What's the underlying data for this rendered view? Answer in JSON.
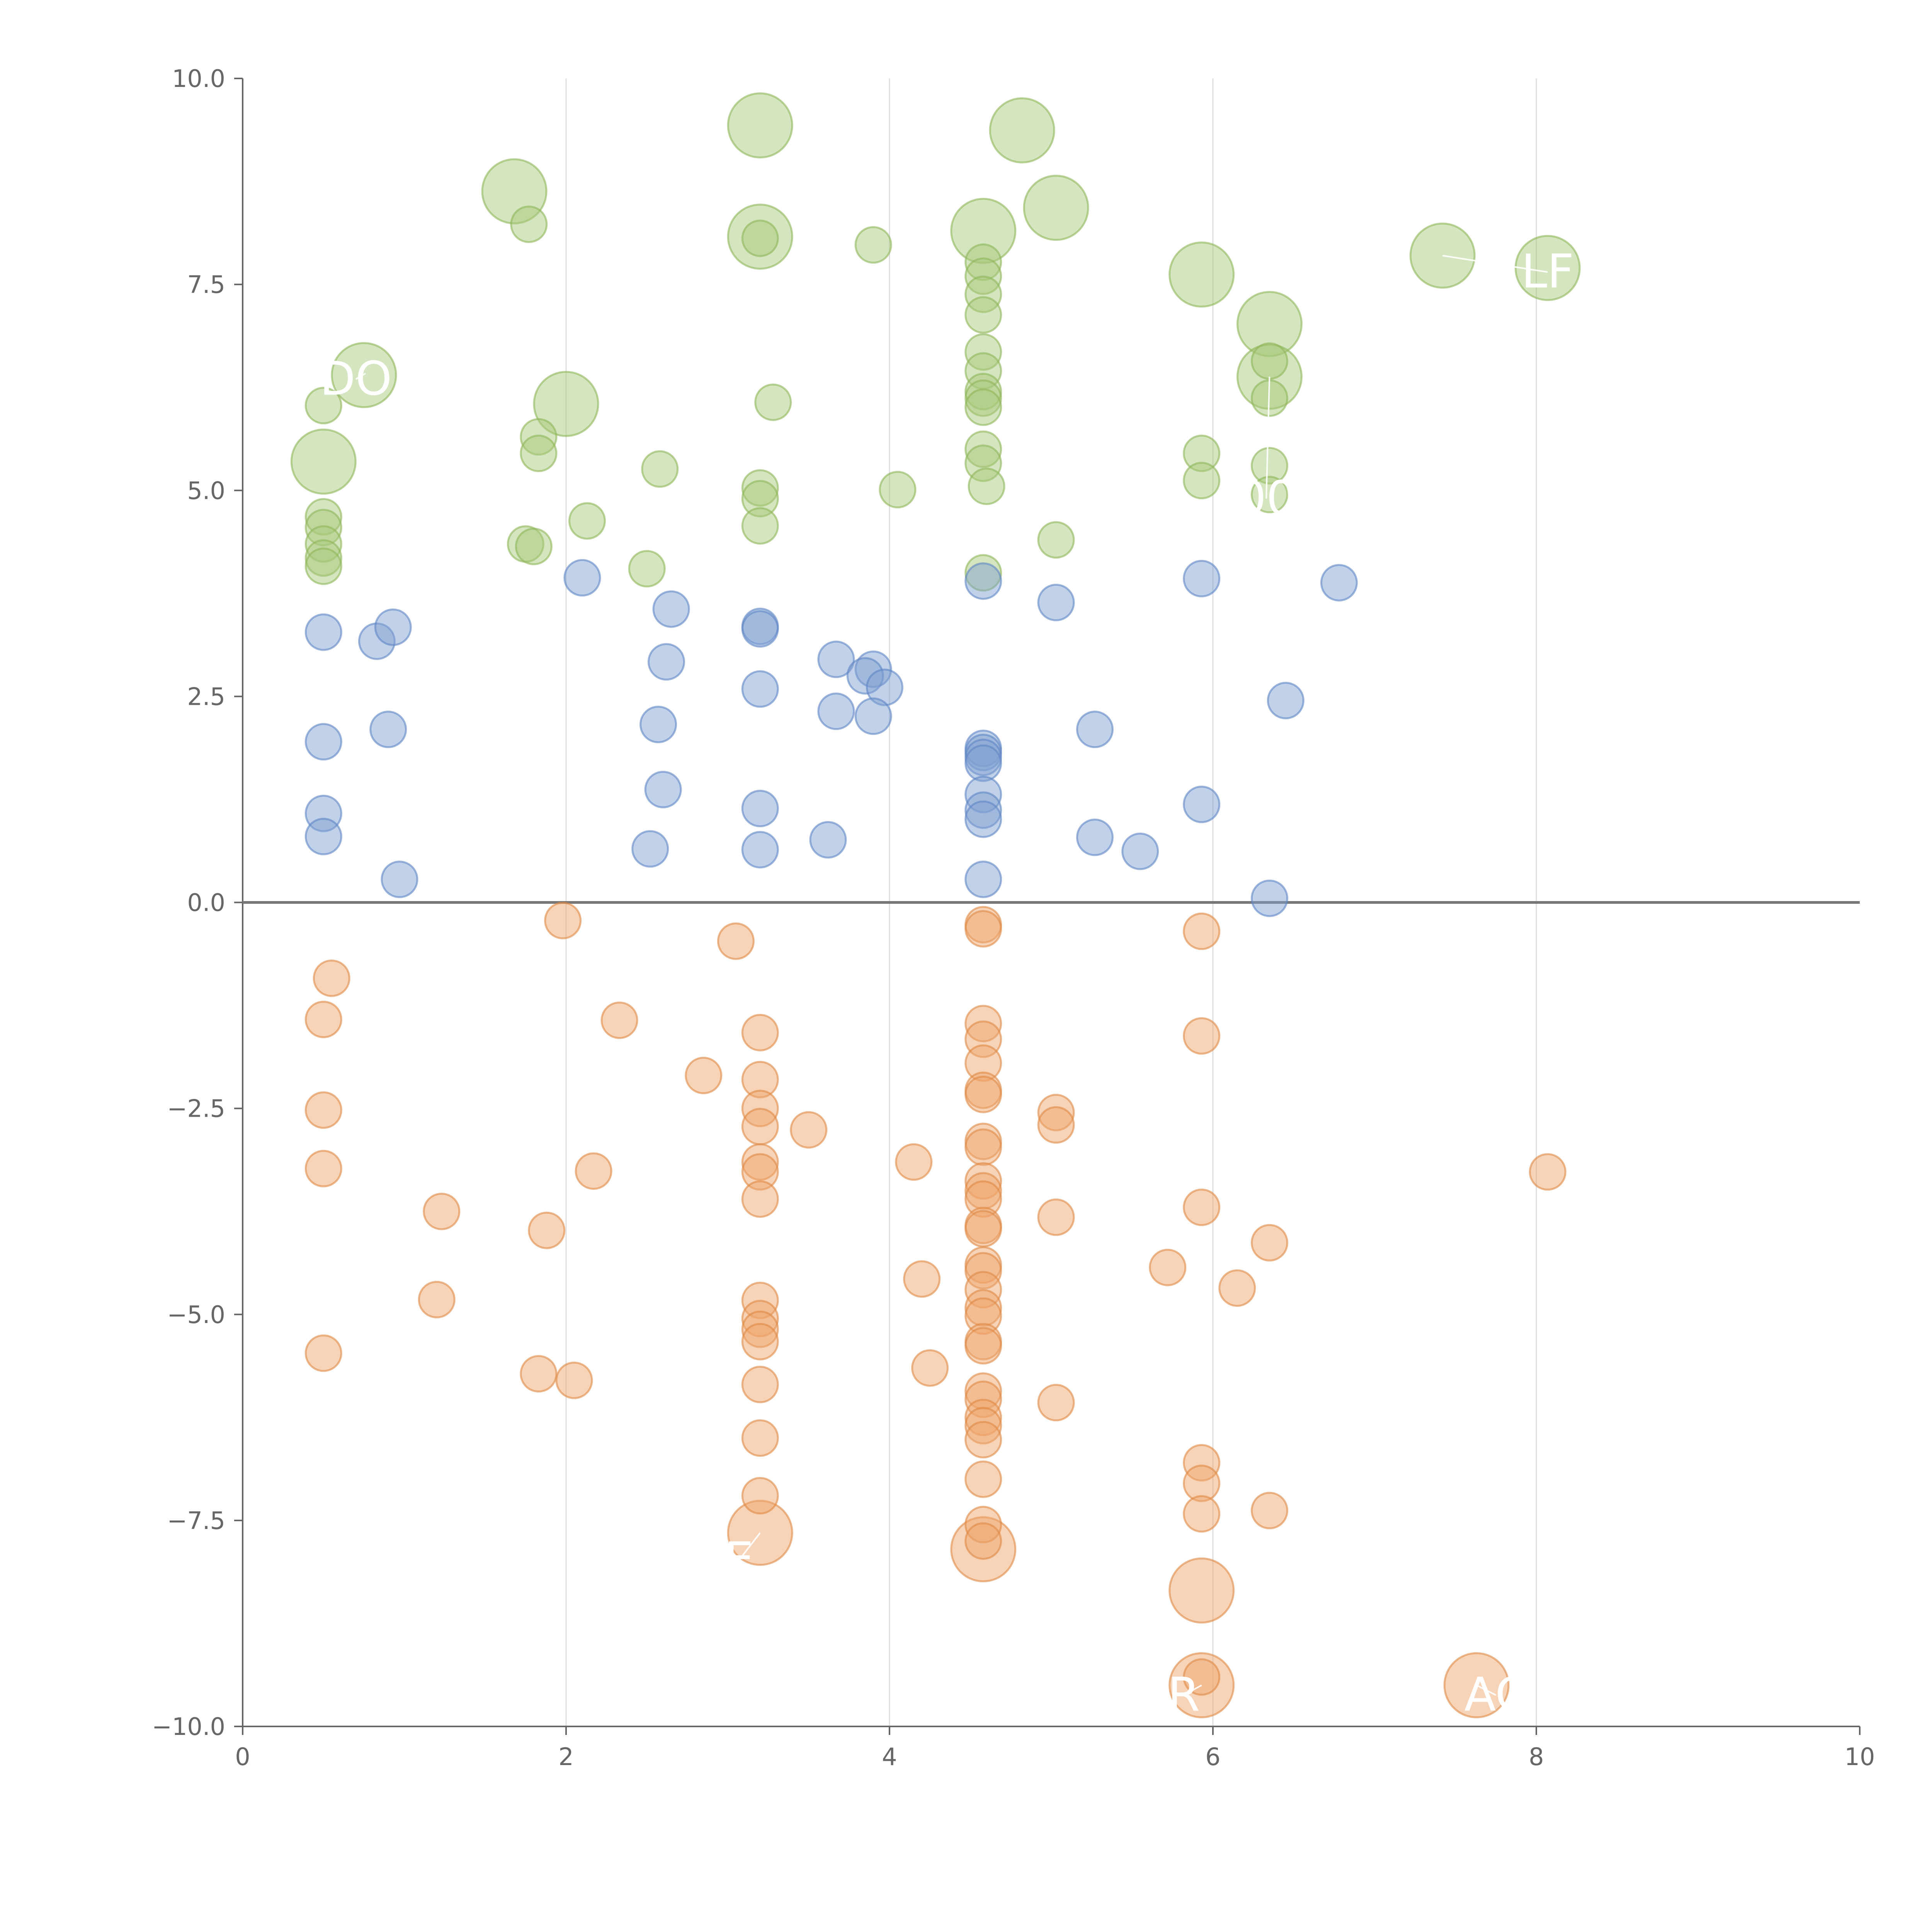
{
  "chart_data": {
    "type": "scatter",
    "title": "",
    "xlabel": "",
    "ylabel": "",
    "xlim": [
      0,
      10
    ],
    "ylim": [
      -10,
      10
    ],
    "xticks": [
      "0",
      "2",
      "4",
      "6",
      "8",
      "10"
    ],
    "yticks": [
      "−10.0",
      "−7.5",
      "−5.0",
      "−2.5",
      "0.0",
      "2.5",
      "5.0",
      "7.5",
      "10.0"
    ],
    "grid": "vertical",
    "zero_line": true,
    "colors": {
      "green": "#a8c87a",
      "green_stroke": "#8db659",
      "blue": "#7e9fd0",
      "blue_stroke": "#5f86c4",
      "orange": "#eea56a",
      "orange_stroke": "#de8844",
      "label": "#ffffff"
    },
    "series": [
      {
        "color_key": "green",
        "points": [
          {
            "x": 0.5,
            "y": 5.35,
            "size": "large"
          },
          {
            "x": 0.75,
            "y": 6.4,
            "size": "large"
          },
          {
            "x": 1.68,
            "y": 8.63,
            "size": "large"
          },
          {
            "x": 2.0,
            "y": 6.05,
            "size": "large"
          },
          {
            "x": 3.2,
            "y": 9.43,
            "size": "large"
          },
          {
            "x": 3.2,
            "y": 8.08,
            "size": "large"
          },
          {
            "x": 4.58,
            "y": 8.15,
            "size": "large"
          },
          {
            "x": 4.82,
            "y": 9.37,
            "size": "large"
          },
          {
            "x": 5.03,
            "y": 8.43,
            "size": "large"
          },
          {
            "x": 5.93,
            "y": 7.62,
            "size": "large"
          },
          {
            "x": 6.35,
            "y": 7.02,
            "size": "large"
          },
          {
            "x": 6.35,
            "y": 6.38,
            "size": "large"
          },
          {
            "x": 7.42,
            "y": 7.85,
            "size": "large"
          },
          {
            "x": 8.07,
            "y": 7.7,
            "size": "large"
          },
          {
            "x": 0.5,
            "y": 6.03
          },
          {
            "x": 0.5,
            "y": 4.68
          },
          {
            "x": 0.5,
            "y": 4.55
          },
          {
            "x": 0.5,
            "y": 4.35
          },
          {
            "x": 0.5,
            "y": 4.18
          },
          {
            "x": 0.5,
            "y": 4.08
          },
          {
            "x": 1.77,
            "y": 8.23
          },
          {
            "x": 1.83,
            "y": 5.65
          },
          {
            "x": 1.83,
            "y": 5.45
          },
          {
            "x": 1.75,
            "y": 4.35
          },
          {
            "x": 1.8,
            "y": 4.32
          },
          {
            "x": 2.13,
            "y": 4.63
          },
          {
            "x": 2.5,
            "y": 4.05
          },
          {
            "x": 2.58,
            "y": 5.26
          },
          {
            "x": 3.2,
            "y": 8.06
          },
          {
            "x": 3.2,
            "y": 5.03
          },
          {
            "x": 3.2,
            "y": 4.9
          },
          {
            "x": 3.2,
            "y": 4.57
          },
          {
            "x": 3.28,
            "y": 6.07
          },
          {
            "x": 3.9,
            "y": 7.98
          },
          {
            "x": 4.05,
            "y": 5.01
          },
          {
            "x": 4.58,
            "y": 7.77
          },
          {
            "x": 4.58,
            "y": 7.6
          },
          {
            "x": 4.58,
            "y": 7.38
          },
          {
            "x": 4.58,
            "y": 7.13
          },
          {
            "x": 4.58,
            "y": 6.68
          },
          {
            "x": 4.58,
            "y": 6.45
          },
          {
            "x": 4.58,
            "y": 6.2
          },
          {
            "x": 4.58,
            "y": 6.12
          },
          {
            "x": 4.58,
            "y": 6.01
          },
          {
            "x": 4.58,
            "y": 5.5
          },
          {
            "x": 4.58,
            "y": 5.33
          },
          {
            "x": 4.6,
            "y": 5.05
          },
          {
            "x": 4.58,
            "y": 4.0
          },
          {
            "x": 5.03,
            "y": 4.4
          },
          {
            "x": 5.93,
            "y": 5.45
          },
          {
            "x": 5.93,
            "y": 5.12
          },
          {
            "x": 6.35,
            "y": 6.57
          },
          {
            "x": 6.35,
            "y": 6.12
          },
          {
            "x": 6.35,
            "y": 5.3
          },
          {
            "x": 6.35,
            "y": 4.95
          }
        ]
      },
      {
        "color_key": "blue",
        "points": [
          {
            "x": 0.5,
            "y": 3.28
          },
          {
            "x": 0.5,
            "y": 1.95
          },
          {
            "x": 0.5,
            "y": 1.08
          },
          {
            "x": 0.5,
            "y": 0.8
          },
          {
            "x": 0.83,
            "y": 3.17
          },
          {
            "x": 0.93,
            "y": 3.34
          },
          {
            "x": 0.9,
            "y": 2.1
          },
          {
            "x": 0.97,
            "y": 0.28
          },
          {
            "x": 2.1,
            "y": 3.94
          },
          {
            "x": 2.52,
            "y": 0.65
          },
          {
            "x": 2.57,
            "y": 2.16
          },
          {
            "x": 2.6,
            "y": 1.37
          },
          {
            "x": 2.62,
            "y": 2.92
          },
          {
            "x": 2.65,
            "y": 3.56
          },
          {
            "x": 3.2,
            "y": 3.35
          },
          {
            "x": 3.2,
            "y": 3.32
          },
          {
            "x": 3.2,
            "y": 2.59
          },
          {
            "x": 3.2,
            "y": 1.14
          },
          {
            "x": 3.2,
            "y": 0.64
          },
          {
            "x": 3.62,
            "y": 0.76
          },
          {
            "x": 3.67,
            "y": 2.95
          },
          {
            "x": 3.67,
            "y": 2.32
          },
          {
            "x": 3.9,
            "y": 2.83
          },
          {
            "x": 3.85,
            "y": 2.75
          },
          {
            "x": 3.97,
            "y": 2.61
          },
          {
            "x": 3.9,
            "y": 2.26
          },
          {
            "x": 4.58,
            "y": 3.9
          },
          {
            "x": 4.58,
            "y": 1.87
          },
          {
            "x": 4.58,
            "y": 1.82
          },
          {
            "x": 4.58,
            "y": 1.76
          },
          {
            "x": 4.58,
            "y": 1.69
          },
          {
            "x": 4.58,
            "y": 1.31
          },
          {
            "x": 4.58,
            "y": 1.12
          },
          {
            "x": 4.58,
            "y": 1.01
          },
          {
            "x": 4.58,
            "y": 0.28
          },
          {
            "x": 5.03,
            "y": 3.64
          },
          {
            "x": 5.27,
            "y": 2.1
          },
          {
            "x": 5.27,
            "y": 0.79
          },
          {
            "x": 5.55,
            "y": 0.62
          },
          {
            "x": 5.93,
            "y": 3.93
          },
          {
            "x": 5.93,
            "y": 1.19
          },
          {
            "x": 6.35,
            "y": 0.05
          },
          {
            "x": 6.45,
            "y": 2.45
          },
          {
            "x": 6.78,
            "y": 3.88
          }
        ]
      },
      {
        "color_key": "orange",
        "points": [
          {
            "x": 3.2,
            "y": -7.65,
            "size": "large"
          },
          {
            "x": 4.58,
            "y": -7.85,
            "size": "large"
          },
          {
            "x": 5.93,
            "y": -8.35,
            "size": "large"
          },
          {
            "x": 5.93,
            "y": -9.5,
            "size": "large"
          },
          {
            "x": 7.63,
            "y": -9.5,
            "size": "large"
          },
          {
            "x": 0.55,
            "y": -0.92
          },
          {
            "x": 0.5,
            "y": -1.42
          },
          {
            "x": 0.5,
            "y": -2.52
          },
          {
            "x": 0.5,
            "y": -3.23
          },
          {
            "x": 0.5,
            "y": -5.47
          },
          {
            "x": 1.23,
            "y": -3.75
          },
          {
            "x": 1.2,
            "y": -4.82
          },
          {
            "x": 1.83,
            "y": -5.72
          },
          {
            "x": 1.88,
            "y": -3.98
          },
          {
            "x": 1.98,
            "y": -0.22
          },
          {
            "x": 2.05,
            "y": -5.8
          },
          {
            "x": 2.17,
            "y": -3.26
          },
          {
            "x": 2.33,
            "y": -1.43
          },
          {
            "x": 2.85,
            "y": -2.1
          },
          {
            "x": 3.05,
            "y": -0.47
          },
          {
            "x": 3.2,
            "y": -1.58
          },
          {
            "x": 3.2,
            "y": -2.15
          },
          {
            "x": 3.2,
            "y": -2.5
          },
          {
            "x": 3.2,
            "y": -2.72
          },
          {
            "x": 3.2,
            "y": -3.15
          },
          {
            "x": 3.2,
            "y": -3.27
          },
          {
            "x": 3.2,
            "y": -3.6
          },
          {
            "x": 3.2,
            "y": -4.83
          },
          {
            "x": 3.2,
            "y": -5.05
          },
          {
            "x": 3.2,
            "y": -5.18
          },
          {
            "x": 3.2,
            "y": -5.33
          },
          {
            "x": 3.2,
            "y": -5.85
          },
          {
            "x": 3.2,
            "y": -6.5
          },
          {
            "x": 3.2,
            "y": -7.2
          },
          {
            "x": 3.5,
            "y": -2.76
          },
          {
            "x": 4.15,
            "y": -3.15
          },
          {
            "x": 4.2,
            "y": -4.57
          },
          {
            "x": 4.25,
            "y": -5.65
          },
          {
            "x": 4.58,
            "y": -0.27
          },
          {
            "x": 4.58,
            "y": -0.32
          },
          {
            "x": 4.58,
            "y": -1.47
          },
          {
            "x": 4.58,
            "y": -1.66
          },
          {
            "x": 4.58,
            "y": -1.95
          },
          {
            "x": 4.58,
            "y": -2.28
          },
          {
            "x": 4.58,
            "y": -2.33
          },
          {
            "x": 4.58,
            "y": -2.9
          },
          {
            "x": 4.58,
            "y": -2.97
          },
          {
            "x": 4.58,
            "y": -3.38
          },
          {
            "x": 4.58,
            "y": -3.5
          },
          {
            "x": 4.58,
            "y": -3.6
          },
          {
            "x": 4.58,
            "y": -3.92
          },
          {
            "x": 4.58,
            "y": -3.96
          },
          {
            "x": 4.58,
            "y": -4.4
          },
          {
            "x": 4.58,
            "y": -4.47
          },
          {
            "x": 4.58,
            "y": -4.7
          },
          {
            "x": 4.58,
            "y": -4.92
          },
          {
            "x": 4.58,
            "y": -5.02
          },
          {
            "x": 4.58,
            "y": -5.33
          },
          {
            "x": 4.58,
            "y": -5.38
          },
          {
            "x": 4.58,
            "y": -5.93
          },
          {
            "x": 4.58,
            "y": -6.03
          },
          {
            "x": 4.58,
            "y": -6.25
          },
          {
            "x": 4.58,
            "y": -6.35
          },
          {
            "x": 4.58,
            "y": -6.52
          },
          {
            "x": 4.58,
            "y": -7.0
          },
          {
            "x": 4.58,
            "y": -7.55
          },
          {
            "x": 4.58,
            "y": -7.75
          },
          {
            "x": 5.03,
            "y": -2.55
          },
          {
            "x": 5.03,
            "y": -2.7
          },
          {
            "x": 5.03,
            "y": -3.82
          },
          {
            "x": 5.03,
            "y": -6.07
          },
          {
            "x": 5.72,
            "y": -4.43
          },
          {
            "x": 5.93,
            "y": -0.35
          },
          {
            "x": 5.93,
            "y": -1.62
          },
          {
            "x": 5.93,
            "y": -3.7
          },
          {
            "x": 5.93,
            "y": -6.8
          },
          {
            "x": 5.93,
            "y": -7.05
          },
          {
            "x": 5.93,
            "y": -7.42
          },
          {
            "x": 5.93,
            "y": -9.4
          },
          {
            "x": 6.15,
            "y": -4.68
          },
          {
            "x": 6.35,
            "y": -4.13
          },
          {
            "x": 6.35,
            "y": -7.38
          },
          {
            "x": 8.07,
            "y": -3.27
          }
        ]
      }
    ],
    "annotations": [
      {
        "text": "DO",
        "x": 0.7,
        "y": 6.35,
        "from_x": 0.76,
        "from_y": 6.42
      },
      {
        "text": "LF",
        "x": 8.07,
        "y": 7.65,
        "from_x": 7.42,
        "from_y": 7.85
      },
      {
        "text": "00",
        "x": 6.33,
        "y": 4.9,
        "from_x": 6.35,
        "from_y": 6.38
      },
      {
        "text": "R",
        "x": 5.82,
        "y": -9.62,
        "from_x": 5.93,
        "from_y": -9.5
      },
      {
        "text": "AC",
        "x": 7.75,
        "y": -9.62,
        "from_x": 7.63,
        "from_y": -9.5
      },
      {
        "text": "E",
        "x": 3.07,
        "y": -7.98,
        "from_x": 3.2,
        "from_y": -7.65
      }
    ]
  }
}
